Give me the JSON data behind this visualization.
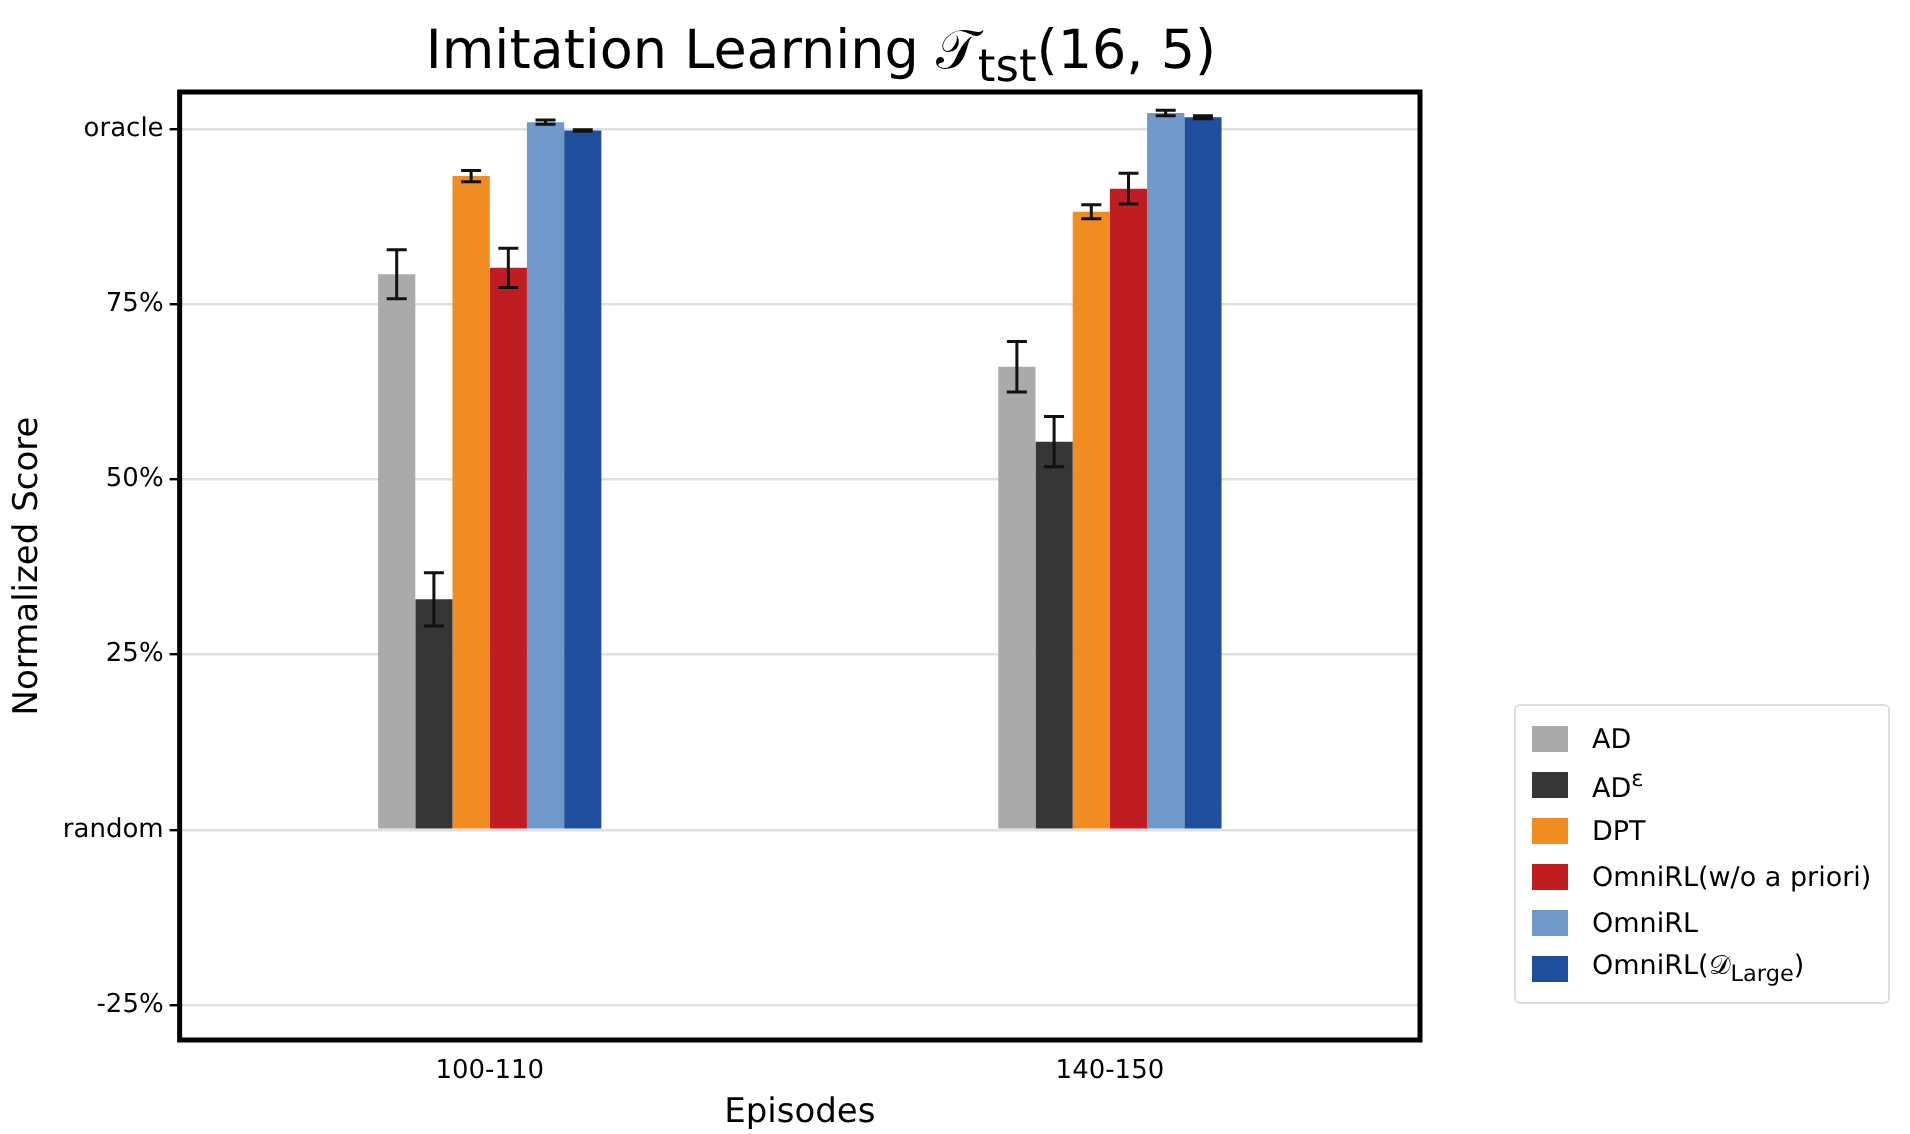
{
  "chart_data": {
    "type": "bar",
    "title": "Imitation Learning 𝒯$_{tst}$(16, 5)",
    "xlabel": "Episodes",
    "ylabel": "Normalized Score",
    "categories": [
      "100-110",
      "140-150"
    ],
    "series": [
      {
        "name": "AD",
        "color": "#aaaaaa",
        "values": [
          79.3,
          66.1
        ],
        "errors": [
          3.5,
          3.6
        ]
      },
      {
        "name": "AD$^{ε}$",
        "color": "#363636",
        "values": [
          32.9,
          55.4
        ],
        "errors": [
          3.8,
          3.6
        ]
      },
      {
        "name": "DPT",
        "color": "#f08c22",
        "values": [
          93.3,
          88.2
        ],
        "errors": [
          0.8,
          1.0
        ]
      },
      {
        "name": "OmniRL(w/o a priori)",
        "color": "#c01d22",
        "values": [
          80.2,
          91.5
        ],
        "errors": [
          2.8,
          2.2
        ]
      },
      {
        "name": "OmniRL",
        "color": "#7098c8",
        "values": [
          101.0,
          102.3
        ],
        "errors": [
          0.3,
          0.4
        ]
      },
      {
        "name": "OmniRL(𝒟$_{Large}$)",
        "color": "#1f4e9c",
        "values": [
          99.8,
          101.7
        ],
        "errors": [
          0.1,
          0.2
        ]
      }
    ],
    "ylim": [
      -30,
      105.3
    ],
    "yticks": [
      {
        "value": -25,
        "label": "-25%"
      },
      {
        "value": 0,
        "label": "random"
      },
      {
        "value": 25,
        "label": "25%"
      },
      {
        "value": 50,
        "label": "50%"
      },
      {
        "value": 75,
        "label": "75%"
      },
      {
        "value": 100,
        "label": "oracle"
      }
    ],
    "grid": "y",
    "legend": "bottom right"
  }
}
